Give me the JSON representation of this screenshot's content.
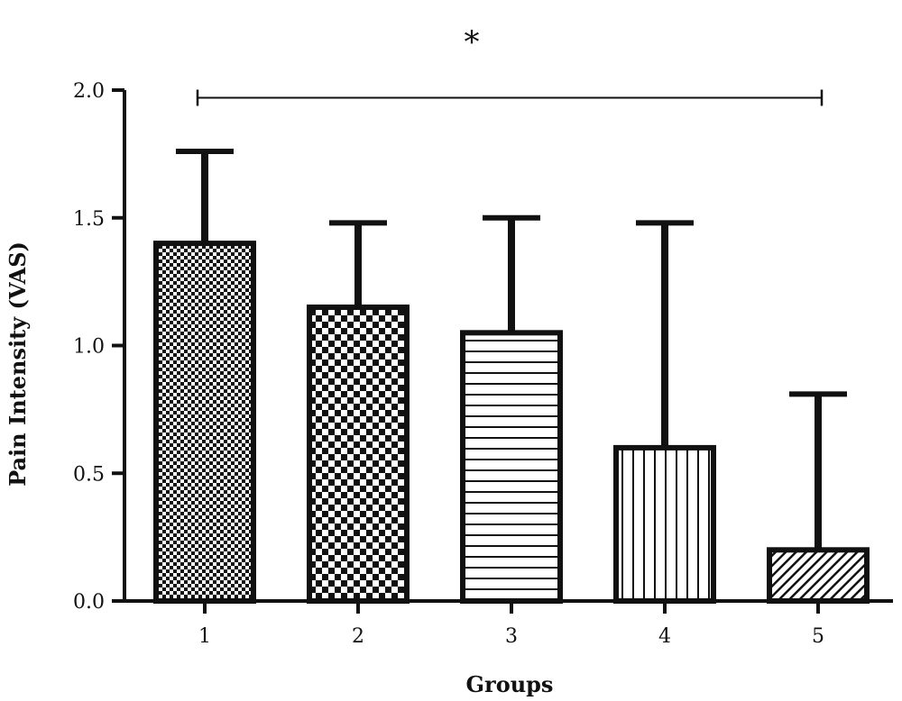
{
  "chart_data": {
    "type": "bar",
    "title": "",
    "xlabel": "Groups",
    "ylabel": "Pain Intensity (VAS)",
    "categories": [
      "1",
      "2",
      "3",
      "4",
      "5"
    ],
    "values": [
      1.4,
      1.15,
      1.05,
      0.6,
      0.2
    ],
    "error_upper": [
      1.76,
      1.48,
      1.5,
      1.48,
      0.81
    ],
    "ylim": [
      0.0,
      2.0
    ],
    "yticks": [
      "0.0",
      "0.5",
      "1.0",
      "1.5",
      "2.0"
    ],
    "grid": false,
    "legend": "none",
    "bar_patterns": [
      "fine-checker",
      "coarse-checker",
      "horizontal-lines",
      "vertical-lines",
      "diagonal-hatch"
    ],
    "significance": {
      "label": "*",
      "from_category": "1",
      "to_category": "5",
      "y": 1.97
    }
  },
  "colors": {
    "ink": "#111111",
    "background": "#ffffff"
  }
}
